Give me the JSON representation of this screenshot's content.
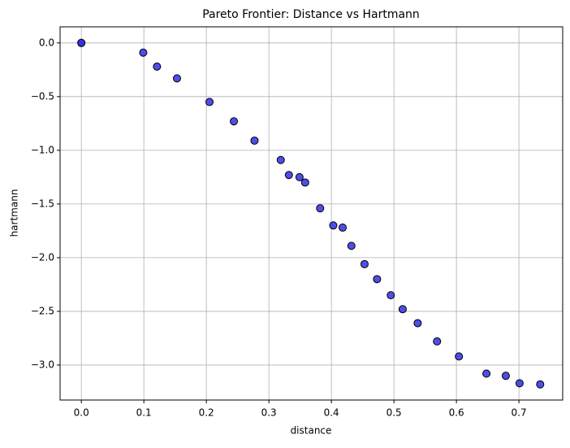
{
  "chart_data": {
    "type": "scatter",
    "title": "Pareto Frontier: Distance vs Hartmann",
    "xlabel": "distance",
    "ylabel": "hartmann",
    "x": [
      0,
      0,
      0.099,
      0.121,
      0.153,
      0.205,
      0.244,
      0.277,
      0.319,
      0.332,
      0.349,
      0.358,
      0.382,
      0.403,
      0.418,
      0.432,
      0.453,
      0.473,
      0.495,
      0.514,
      0.538,
      0.569,
      0.604,
      0.648,
      0.679,
      0.701,
      0.734
    ],
    "values": [
      0,
      0,
      -0.09,
      -0.22,
      -0.33,
      -0.55,
      -0.73,
      -0.91,
      -1.09,
      -1.23,
      -1.25,
      -1.3,
      -1.54,
      -1.7,
      -1.72,
      -1.89,
      -2.06,
      -2.2,
      -2.35,
      -2.48,
      -2.61,
      -2.78,
      -2.92,
      -3.08,
      -3.1,
      -3.17,
      -3.18
    ],
    "color": "#2f2fe6",
    "edgecolor": "#000000",
    "xlim": [
      -0.034,
      0.77
    ],
    "ylim": [
      -3.326,
      0.15
    ],
    "xticks": [
      {
        "value": 0,
        "label": "0.0"
      },
      {
        "value": 0.1,
        "label": "0.1"
      },
      {
        "value": 0.2,
        "label": "0.2"
      },
      {
        "value": 0.3,
        "label": "0.3"
      },
      {
        "value": 0.4,
        "label": "0.4"
      },
      {
        "value": 0.5,
        "label": "0.5"
      },
      {
        "value": 0.6,
        "label": "0.6"
      },
      {
        "value": 0.7,
        "label": "0.7"
      }
    ],
    "yticks": [
      {
        "value": -3,
        "label": "−3.0"
      },
      {
        "value": -2.5,
        "label": "−2.5"
      },
      {
        "value": -2,
        "label": "−2.0"
      },
      {
        "value": -1.5,
        "label": "−1.5"
      },
      {
        "value": -1,
        "label": "−1.0"
      },
      {
        "value": -0.5,
        "label": "−0.5"
      },
      {
        "value": 0,
        "label": "0.0"
      }
    ],
    "grid": true
  }
}
